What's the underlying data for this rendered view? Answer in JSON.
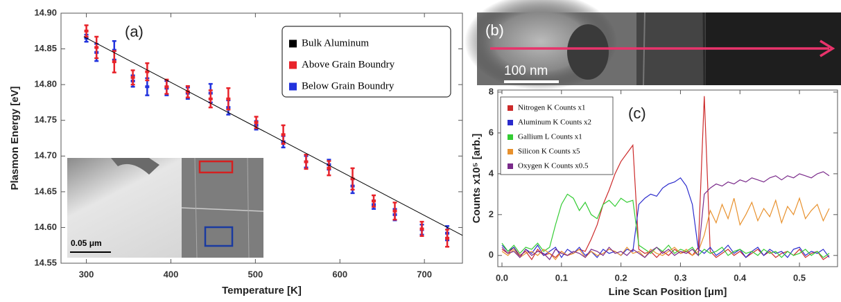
{
  "chart_data": [
    {
      "type": "errorbar",
      "panel_label": "(a)",
      "x_label": "Temperature [K]",
      "y_label": "Plasmon Energy [eV]",
      "xlim": [
        270,
        745
      ],
      "ylim": [
        14.55,
        14.9
      ],
      "xticks": [
        300,
        400,
        500,
        600,
        700
      ],
      "yticks": [
        14.55,
        {
          "value": 14.6,
          "label": "14.60"
        },
        14.65,
        {
          "value": 14.7,
          "label": "14.70"
        },
        14.75,
        {
          "value": 14.8,
          "label": "14.80"
        },
        14.85,
        {
          "value": 14.9,
          "label": "14.90"
        }
      ],
      "series": [
        {
          "name": "Bulk Aluminum",
          "color": "#000000",
          "type": "line",
          "x": [
            297,
            745
          ],
          "values": [
            14.867,
            14.589
          ]
        },
        {
          "name": "Above Grain Boundry",
          "color": "#e8232a",
          "x": [
            300,
            312,
            333,
            355,
            372,
            395,
            420,
            447,
            468,
            501,
            533,
            560,
            587,
            615,
            640,
            665,
            697,
            727
          ],
          "values": [
            14.875,
            14.852,
            14.832,
            14.81,
            14.818,
            14.797,
            14.79,
            14.78,
            14.78,
            14.747,
            14.73,
            14.692,
            14.683,
            14.668,
            14.637,
            14.623,
            14.598,
            14.585
          ],
          "errors": [
            0.008,
            0.015,
            0.015,
            0.01,
            0.012,
            0.01,
            0.008,
            0.012,
            0.015,
            0.008,
            0.013,
            0.01,
            0.01,
            0.015,
            0.008,
            0.012,
            0.01,
            0.012
          ]
        },
        {
          "name": "Below Grain Boundry",
          "color": "#2233dd",
          "x": [
            300,
            312,
            333,
            355,
            372,
            395,
            420,
            447,
            468,
            501,
            533,
            560,
            587,
            615,
            640,
            665,
            697,
            727
          ],
          "values": [
            14.865,
            14.845,
            14.848,
            14.805,
            14.797,
            14.795,
            14.788,
            14.788,
            14.768,
            14.743,
            14.72,
            14.692,
            14.688,
            14.658,
            14.632,
            14.618,
            14.597,
            14.592
          ],
          "errors": [
            0.005,
            0.012,
            0.013,
            0.008,
            0.012,
            0.01,
            0.008,
            0.013,
            0.01,
            0.006,
            0.008,
            0.008,
            0.007,
            0.01,
            0.006,
            0.008,
            0.007,
            0.01
          ]
        }
      ],
      "inset_scale_label": "0.05 μm"
    },
    {
      "type": "line",
      "panel_label": "(c)",
      "x_label": "Line Scan Position [μm]",
      "y_label": "Counts x10⁵ [arb.]",
      "xlim": [
        -0.007,
        0.564
      ],
      "ylim": [
        -0.55,
        8.1
      ],
      "xticks": [
        {
          "value": 0,
          "label": "0.0"
        },
        0.1,
        0.2,
        0.3,
        0.4,
        0.5
      ],
      "yticks": [
        0,
        2,
        4,
        6,
        8
      ],
      "x": [
        0,
        0.01,
        0.02,
        0.03,
        0.04,
        0.05,
        0.06,
        0.07,
        0.08,
        0.09,
        0.1,
        0.11,
        0.12,
        0.13,
        0.14,
        0.15,
        0.16,
        0.17,
        0.18,
        0.19,
        0.2,
        0.21,
        0.22,
        0.23,
        0.24,
        0.25,
        0.26,
        0.27,
        0.28,
        0.29,
        0.3,
        0.31,
        0.32,
        0.33,
        0.34,
        0.35,
        0.36,
        0.37,
        0.38,
        0.39,
        0.4,
        0.41,
        0.42,
        0.43,
        0.44,
        0.45,
        0.46,
        0.47,
        0.48,
        0.49,
        0.5,
        0.51,
        0.52,
        0.53,
        0.54,
        0.55
      ],
      "series": [
        {
          "name": "Nitrogen K Counts x1",
          "color": "#cc2a2a",
          "values": [
            0.3,
            0.1,
            0.4,
            0.0,
            0.2,
            -0.2,
            0.3,
            0.0,
            0.1,
            -0.1,
            0.2,
            0.0,
            0.1,
            0.3,
            0.2,
            0.8,
            1.5,
            2.5,
            3.2,
            4.0,
            4.6,
            5.0,
            5.4,
            0.3,
            0.1,
            0.2,
            -0.1,
            0.2,
            0.0,
            0.3,
            0.1,
            0.2,
            0.0,
            0.4,
            7.8,
            0.2,
            -0.1,
            0.1,
            0.3,
            0.0,
            0.2,
            -0.1,
            0.1,
            0.3,
            0.0,
            0.2,
            -0.1,
            0.1,
            0.2,
            0.0,
            0.3,
            -0.1,
            0.1,
            0.2,
            -0.2,
            0.0
          ]
        },
        {
          "name": "Aluminum K Counts x2",
          "color": "#2a2acc",
          "values": [
            0.5,
            0.2,
            0.4,
            -0.1,
            0.3,
            0.1,
            0.5,
            0.0,
            0.2,
            0.4,
            -0.1,
            0.3,
            0.1,
            0.4,
            0.0,
            0.2,
            -0.1,
            0.3,
            0.1,
            0.2,
            0.0,
            0.3,
            0.2,
            2.5,
            2.8,
            3.0,
            2.9,
            3.3,
            3.5,
            3.6,
            3.8,
            3.4,
            2.5,
            0.3,
            0.1,
            0.4,
            0.0,
            0.2,
            0.5,
            0.1,
            0.3,
            -0.1,
            0.2,
            0.4,
            0.0,
            0.3,
            0.1,
            0.2,
            -0.1,
            0.3,
            0.4,
            0.0,
            0.2,
            0.1,
            0.3,
            -0.1
          ]
        },
        {
          "name": "Gallium L Counts x1",
          "color": "#33cc33",
          "values": [
            0.6,
            0.2,
            0.5,
            0.1,
            0.4,
            0.3,
            0.6,
            0.2,
            0.4,
            1.5,
            2.5,
            3.0,
            2.8,
            2.2,
            2.6,
            2.0,
            1.8,
            2.5,
            2.7,
            2.4,
            2.8,
            2.6,
            2.7,
            0.5,
            0.3,
            0.1,
            0.4,
            0.2,
            0.5,
            0.1,
            0.3,
            0.2,
            0.4,
            0.0,
            0.3,
            0.1,
            0.2,
            0.4,
            0.0,
            0.2,
            0.3,
            0.1,
            0.2,
            0.0,
            0.3,
            0.1,
            0.2,
            -0.1,
            0.2,
            0.0,
            0.1,
            0.3,
            0.0,
            0.2,
            -0.1,
            0.1
          ]
        },
        {
          "name": "Silicon K Counts x5",
          "color": "#e8912d",
          "values": [
            0.2,
            0.0,
            0.3,
            -0.1,
            0.1,
            0.2,
            0.0,
            0.3,
            0.1,
            -0.2,
            0.2,
            0.0,
            0.1,
            0.3,
            -0.1,
            0.2,
            0.0,
            0.1,
            0.3,
            0.2,
            0.0,
            0.4,
            0.1,
            0.2,
            -0.1,
            0.3,
            0.1,
            0.0,
            0.2,
            0.4,
            0.1,
            0.3,
            0.0,
            0.2,
            1.0,
            2.2,
            1.6,
            2.5,
            1.8,
            2.8,
            1.5,
            2.0,
            2.6,
            1.7,
            2.3,
            1.9,
            2.7,
            1.6,
            2.4,
            2.0,
            2.8,
            1.8,
            2.2,
            2.5,
            1.7,
            2.3
          ]
        },
        {
          "name": "Oxygen K Counts x0.5",
          "color": "#7a2a8a",
          "values": [
            0.4,
            0.1,
            0.2,
            -0.1,
            0.3,
            0.0,
            0.2,
            0.1,
            -0.2,
            0.3,
            0.1,
            0.0,
            0.2,
            0.1,
            -0.1,
            0.3,
            0.2,
            0.0,
            0.4,
            0.1,
            0.2,
            0.0,
            0.3,
            0.1,
            -0.1,
            0.2,
            0.4,
            0.1,
            0.3,
            0.0,
            0.2,
            0.1,
            0.3,
            0.0,
            3.0,
            3.3,
            3.5,
            3.4,
            3.6,
            3.5,
            3.7,
            3.6,
            3.8,
            3.7,
            3.6,
            3.8,
            3.9,
            3.7,
            3.9,
            3.8,
            4.0,
            3.9,
            3.8,
            4.0,
            4.1,
            3.9
          ]
        }
      ]
    }
  ],
  "image_panel": {
    "label": "(b)",
    "scale_label": "100 nm"
  }
}
